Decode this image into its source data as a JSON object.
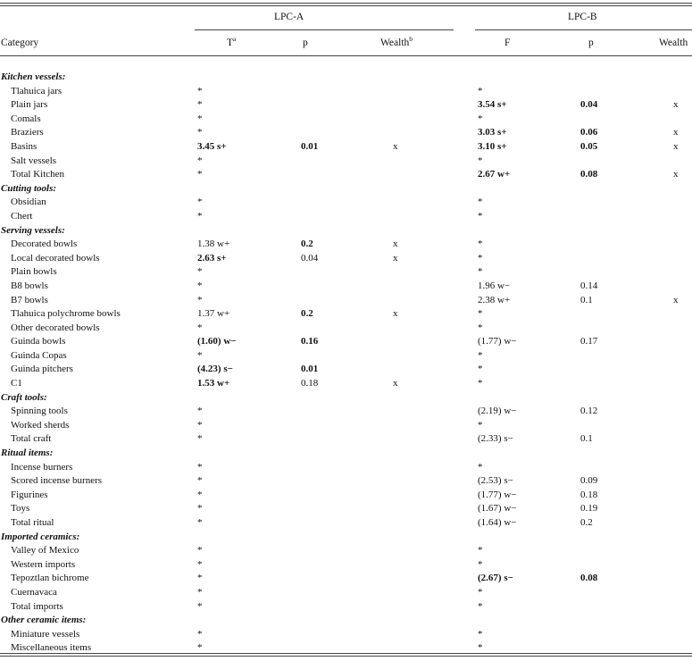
{
  "headers": {
    "group_a": "LPC-A",
    "group_b": "LPC-B",
    "category": "Category",
    "col_t": "T",
    "col_t_sup": "a",
    "col_p_a": "p",
    "col_wealth_a": "Wealth",
    "col_wealth_a_sup": "b",
    "col_f": "F",
    "col_p_b": "p",
    "col_wealth_b": "Wealth"
  },
  "rows": [
    {
      "type": "section",
      "category": "Kitchen vessels:"
    },
    {
      "type": "item",
      "category": "Tlahuica jars",
      "a_stat": "*",
      "b_stat": "*"
    },
    {
      "type": "item",
      "category": "Plain jars",
      "a_stat": "*",
      "b_stat": "3.54 s+",
      "b_stat_bold": true,
      "b_p": "0.04",
      "b_p_bold": true,
      "b_wealth": "x"
    },
    {
      "type": "item",
      "category": "Comals",
      "a_stat": "*",
      "b_stat": "*"
    },
    {
      "type": "item",
      "category": "Braziers",
      "a_stat": "*",
      "b_stat": "3.03 s+",
      "b_stat_bold": true,
      "b_p": "0.06",
      "b_p_bold": true,
      "b_wealth": "x"
    },
    {
      "type": "item",
      "category": "Basins",
      "a_stat": "3.45 s+",
      "a_stat_bold": true,
      "a_p": "0.01",
      "a_p_bold": true,
      "a_wealth": "x",
      "b_stat": "3.10 s+",
      "b_stat_bold": true,
      "b_p": "0.05",
      "b_p_bold": true,
      "b_wealth": "x"
    },
    {
      "type": "item",
      "category": "Salt vessels",
      "a_stat": "*",
      "b_stat": "*"
    },
    {
      "type": "item",
      "category": "Total Kitchen",
      "a_stat": "*",
      "b_stat": "2.67 w+",
      "b_stat_bold": true,
      "b_p": "0.08",
      "b_p_bold": true,
      "b_wealth": "x"
    },
    {
      "type": "section",
      "category": "Cutting tools:"
    },
    {
      "type": "item",
      "category": "Obsidian",
      "a_stat": "*",
      "b_stat": "*"
    },
    {
      "type": "item",
      "category": "Chert",
      "a_stat": "*",
      "b_stat": "*"
    },
    {
      "type": "section",
      "category": "Serving vessels:"
    },
    {
      "type": "item",
      "category": "Decorated bowls",
      "a_stat": "1.38 w+",
      "a_p": "0.2",
      "a_p_bold": true,
      "a_wealth": "x",
      "b_stat": "*"
    },
    {
      "type": "item",
      "category": "Local decorated bowls",
      "a_stat": "2.63 s+",
      "a_stat_bold": true,
      "a_p": "0.04",
      "a_wealth": "x",
      "b_stat": "*"
    },
    {
      "type": "item",
      "category": "Plain bowls",
      "a_stat": "*",
      "b_stat": "*"
    },
    {
      "type": "item",
      "category": "B8 bowls",
      "a_stat": "*",
      "b_stat": "1.96 w−",
      "b_p": "0.14"
    },
    {
      "type": "item",
      "category": "B7 bowls",
      "a_stat": "*",
      "b_stat": "2.38 w+",
      "b_p": "0.1",
      "b_wealth": "x"
    },
    {
      "type": "item",
      "category": "Tlahuica polychrome bowls",
      "a_stat": "1.37 w+",
      "a_p": "0.2",
      "a_p_bold": true,
      "a_wealth": "x",
      "b_stat": "*"
    },
    {
      "type": "item",
      "category": "Other decorated bowls",
      "a_stat": "*",
      "b_stat": "*"
    },
    {
      "type": "item",
      "category": "Guinda bowls",
      "a_stat": "(1.60) w−",
      "a_stat_bold": true,
      "a_p": "0.16",
      "a_p_bold": true,
      "b_stat": "(1.77) w−",
      "b_p": "0.17"
    },
    {
      "type": "item",
      "category": "Guinda Copas",
      "a_stat": "*",
      "b_stat": "*"
    },
    {
      "type": "item",
      "category": "Guinda pitchers",
      "a_stat": "(4.23) s−",
      "a_stat_bold": true,
      "a_p": "0.01",
      "a_p_bold": true,
      "b_stat": "*"
    },
    {
      "type": "item",
      "category": "C1",
      "a_stat": "1.53 w+",
      "a_stat_bold": true,
      "a_p": "0.18",
      "a_wealth": "x",
      "b_stat": "*"
    },
    {
      "type": "section",
      "category": "Craft tools:"
    },
    {
      "type": "item",
      "category": "Spinning tools",
      "a_stat": "*",
      "b_stat": "(2.19) w−",
      "b_p": "0.12"
    },
    {
      "type": "item",
      "category": "Worked sherds",
      "a_stat": "*",
      "b_stat": "*"
    },
    {
      "type": "item",
      "category": "Total craft",
      "a_stat": "*",
      "b_stat": "(2.33) s−",
      "b_p": "0.1"
    },
    {
      "type": "section",
      "category": "Ritual items:"
    },
    {
      "type": "item",
      "category": "Incense burners",
      "a_stat": "*",
      "b_stat": "*"
    },
    {
      "type": "item",
      "category": "Scored incense burners",
      "a_stat": "*",
      "b_stat": "(2.53) s−",
      "b_p": "0.09"
    },
    {
      "type": "item",
      "category": "Figurines",
      "a_stat": "*",
      "b_stat": "(1.77) w−",
      "b_p": "0.18"
    },
    {
      "type": "item",
      "category": "Toys",
      "a_stat": "*",
      "b_stat": "(1.67) w−",
      "b_p": "0.19"
    },
    {
      "type": "item",
      "category": "Total ritual",
      "a_stat": "*",
      "b_stat": "(1.64) w−",
      "b_p": "0.2"
    },
    {
      "type": "section",
      "category": "Imported ceramics:"
    },
    {
      "type": "item",
      "category": "Valley of Mexico",
      "a_stat": "*",
      "b_stat": "*"
    },
    {
      "type": "item",
      "category": "Western imports",
      "a_stat": "*",
      "b_stat": "*"
    },
    {
      "type": "item",
      "category": "Tepoztlan bichrome",
      "a_stat": "*",
      "b_stat": "(2.67) s−",
      "b_stat_bold": true,
      "b_p": "0.08",
      "b_p_bold": true
    },
    {
      "type": "item",
      "category": "Cuernavaca",
      "a_stat": "*",
      "b_stat": "*"
    },
    {
      "type": "item",
      "category": "Total imports",
      "a_stat": "*",
      "b_stat": "*"
    },
    {
      "type": "section",
      "category": "Other ceramic items:"
    },
    {
      "type": "item",
      "category": "Miniature vessels",
      "a_stat": "*",
      "b_stat": "*"
    },
    {
      "type": "item",
      "category": "Miscellaneous items",
      "a_stat": "*",
      "b_stat": "*"
    }
  ]
}
